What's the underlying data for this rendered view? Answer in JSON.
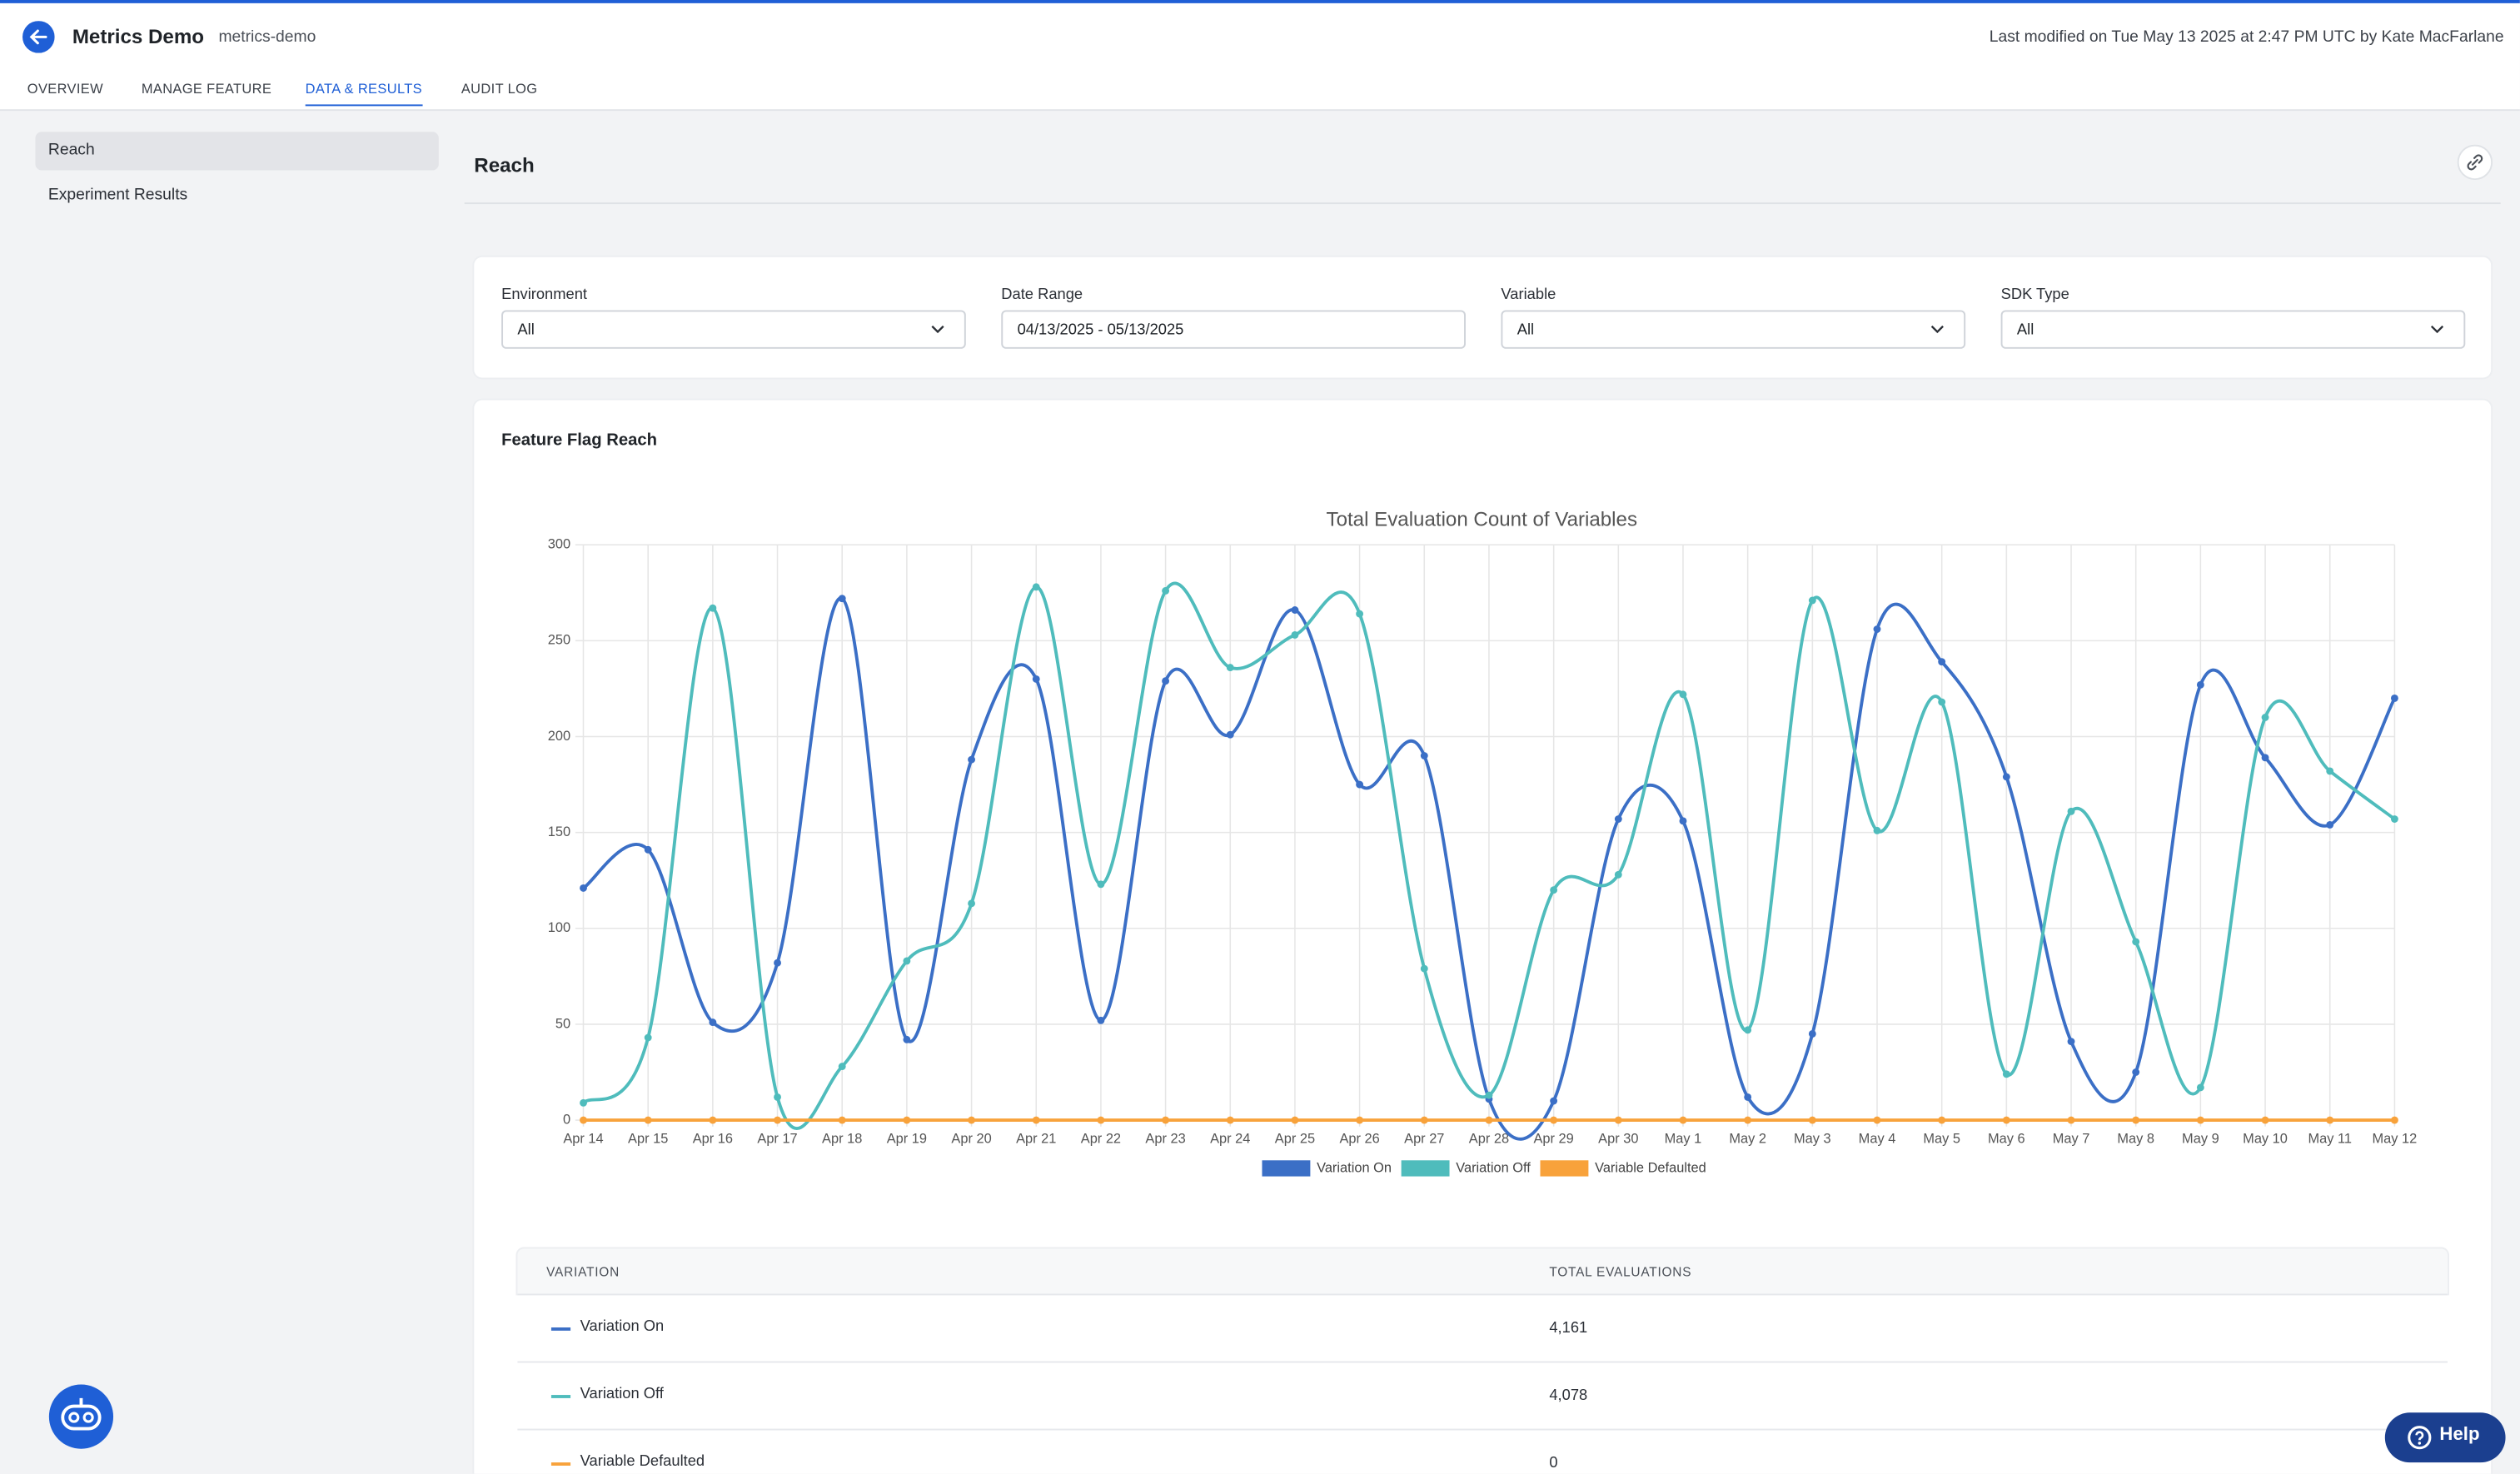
{
  "header": {
    "title": "Metrics Demo",
    "key": "metrics-demo",
    "last_modified": "Last modified on Tue May 13 2025 at 2:47 PM UTC by Kate MacFarlane"
  },
  "tabs": [
    "OVERVIEW",
    "MANAGE FEATURE",
    "DATA & RESULTS",
    "AUDIT LOG"
  ],
  "active_tab": 2,
  "sidebar": [
    "Reach",
    "Experiment Results"
  ],
  "active_sidebar": 0,
  "section_title": "Reach",
  "filters": [
    {
      "label": "Environment",
      "value": "All"
    },
    {
      "label": "Date Range",
      "value": "04/13/2025 - 05/13/2025"
    },
    {
      "label": "Variable",
      "value": "All"
    },
    {
      "label": "SDK Type",
      "value": "All"
    }
  ],
  "card_title": "Feature Flag Reach",
  "chart_data": {
    "type": "line",
    "title": "Total Evaluation Count of Variables",
    "categories": [
      "Apr 14",
      "Apr 15",
      "Apr 16",
      "Apr 17",
      "Apr 18",
      "Apr 19",
      "Apr 20",
      "Apr 21",
      "Apr 22",
      "Apr 23",
      "Apr 24",
      "Apr 25",
      "Apr 26",
      "Apr 27",
      "Apr 28",
      "Apr 29",
      "Apr 30",
      "May 1",
      "May 2",
      "May 3",
      "May 4",
      "May 5",
      "May 6",
      "May 7",
      "May 8",
      "May 9",
      "May 10",
      "May 11",
      "May 12"
    ],
    "series": [
      {
        "name": "Variation On",
        "color": "#3b6fc6",
        "values": [
          121,
          141,
          51,
          82,
          272,
          42,
          188,
          230,
          52,
          229,
          201,
          266,
          175,
          190,
          11,
          10,
          157,
          156,
          12,
          45,
          256,
          239,
          179,
          41,
          25,
          227,
          189,
          154,
          220
        ]
      },
      {
        "name": "Variation Off",
        "color": "#4fbcbc",
        "values": [
          9,
          43,
          267,
          12,
          28,
          83,
          113,
          278,
          123,
          276,
          236,
          253,
          264,
          79,
          13,
          120,
          128,
          222,
          47,
          271,
          151,
          218,
          24,
          161,
          93,
          17,
          210,
          182,
          157
        ]
      },
      {
        "name": "Variable Defaulted",
        "color": "#f8a23b",
        "values": [
          0,
          0,
          0,
          0,
          0,
          0,
          0,
          0,
          0,
          0,
          0,
          0,
          0,
          0,
          0,
          0,
          0,
          0,
          0,
          0,
          0,
          0,
          0,
          0,
          0,
          0,
          0,
          0,
          0
        ]
      }
    ],
    "ylim": [
      0,
      300
    ],
    "yticks": [
      0,
      50,
      100,
      150,
      200,
      250,
      300
    ],
    "grid": true,
    "legend": "bottom"
  },
  "table": {
    "headers": [
      "VARIATION",
      "TOTAL EVALUATIONS"
    ],
    "rows": [
      [
        "Variation On",
        "4,161"
      ],
      [
        "Variation Off",
        "4,078"
      ],
      [
        "Variable Defaulted",
        "0"
      ]
    ]
  },
  "help": "Help"
}
